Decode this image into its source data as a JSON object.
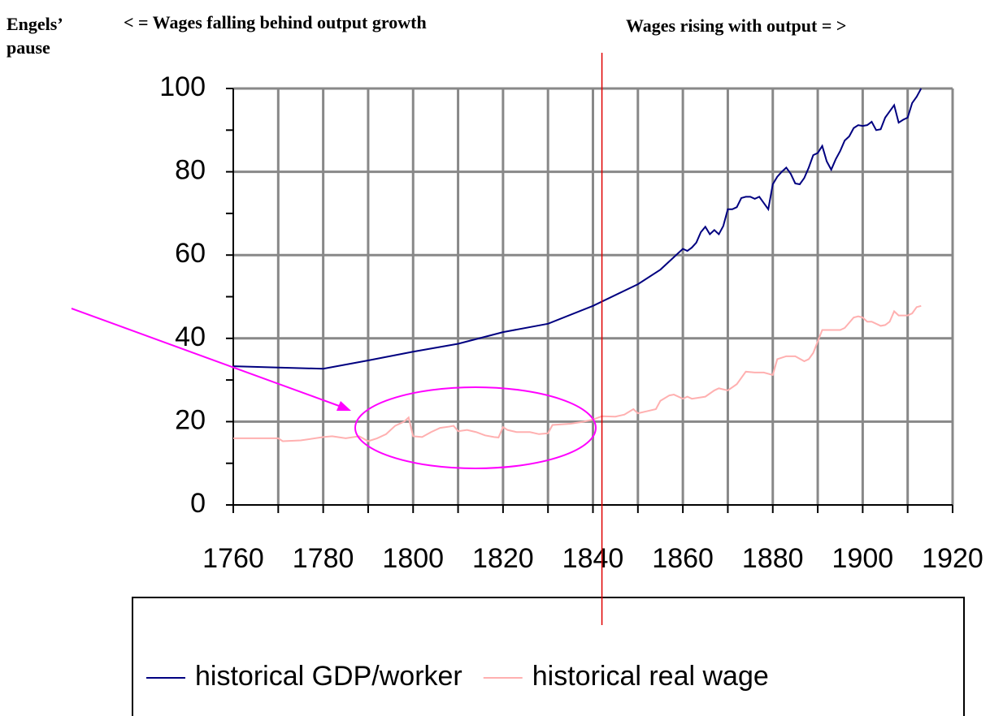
{
  "chart_data": {
    "type": "line",
    "annotations": [
      "Engels’",
      "pause",
      "< = Wages falling behind output growth",
      "Wages rising with output = >"
    ],
    "divider_x": 1842,
    "series": [
      {
        "name": "historical GDP/worker",
        "color": "#000080",
        "x": [
          1760,
          1770,
          1780,
          1790,
          1800,
          1810,
          1820,
          1830,
          1840,
          1850,
          1855,
          1860,
          1861,
          1862,
          1863,
          1864,
          1865,
          1866,
          1867,
          1868,
          1869,
          1870,
          1871,
          1872,
          1873,
          1874,
          1875,
          1876,
          1877,
          1878,
          1879,
          1880,
          1881,
          1882,
          1883,
          1884,
          1885,
          1886,
          1887,
          1888,
          1889,
          1890,
          1891,
          1892,
          1893,
          1894,
          1895,
          1896,
          1897,
          1898,
          1899,
          1900,
          1901,
          1902,
          1903,
          1904,
          1905,
          1906,
          1907,
          1908,
          1909,
          1910,
          1911,
          1912,
          1913
        ],
        "values": [
          33.3,
          33,
          32.7,
          34.7,
          36.8,
          38.7,
          41.5,
          43.5,
          47.8,
          53,
          56.5,
          61.5,
          61,
          61.8,
          63,
          65.5,
          66.8,
          65,
          66,
          65,
          67,
          71,
          71,
          71.5,
          73.7,
          74,
          74,
          73.5,
          74,
          72.5,
          71,
          77,
          78.8,
          80,
          81,
          79.5,
          77.2,
          77,
          78.5,
          81,
          84,
          84.5,
          86.2,
          82.5,
          80.5,
          83,
          85,
          87.5,
          88.5,
          90.5,
          91.2,
          91,
          91.2,
          92,
          90,
          90.2,
          93,
          94.5,
          96,
          91.8,
          92.5,
          93,
          96.5,
          98,
          100
        ]
      },
      {
        "name": "historical real wage",
        "color": "#ffb0b0",
        "x": [
          1760,
          1770,
          1771,
          1775,
          1780,
          1782,
          1785,
          1788,
          1790,
          1792,
          1794,
          1796,
          1798,
          1799,
          1800,
          1802,
          1804,
          1806,
          1808,
          1809,
          1810,
          1812,
          1814,
          1816,
          1818,
          1819,
          1820,
          1821,
          1823,
          1826,
          1828,
          1830,
          1831,
          1835,
          1838,
          1840,
          1842,
          1845,
          1847,
          1849,
          1850,
          1852,
          1854,
          1855,
          1857,
          1858,
          1860,
          1861,
          1862,
          1865,
          1867,
          1868,
          1870,
          1872,
          1874,
          1876,
          1878,
          1880,
          1881,
          1883,
          1885,
          1887,
          1888,
          1889,
          1891,
          1895,
          1896,
          1898,
          1899,
          1900,
          1901,
          1902,
          1904,
          1905,
          1906,
          1907,
          1908,
          1910,
          1911,
          1912,
          1913
        ],
        "values": [
          16,
          16,
          15.3,
          15.5,
          16.3,
          16.5,
          16,
          16.5,
          15.3,
          16,
          17,
          19,
          20,
          21,
          16.5,
          16.3,
          17.5,
          18.5,
          18.8,
          19,
          17.7,
          18,
          17.5,
          16.7,
          16.3,
          16.2,
          18.7,
          18,
          17.5,
          17.5,
          17,
          17.2,
          19.2,
          19.5,
          20,
          20.5,
          21.3,
          21.2,
          21.7,
          23,
          22,
          22.5,
          23,
          25,
          26.3,
          26.5,
          25.5,
          26,
          25.5,
          26,
          27.5,
          28,
          27.5,
          29,
          32,
          31.8,
          31.8,
          31.2,
          35,
          35.7,
          35.7,
          34.5,
          35,
          36.5,
          42,
          42,
          42.5,
          45,
          45.3,
          45,
          44,
          44,
          43,
          43.2,
          44,
          46.5,
          45.5,
          45.5,
          46,
          47.5,
          47.8
        ]
      }
    ],
    "xlim": [
      1760,
      1920
    ],
    "xticks": [
      1760,
      1780,
      1800,
      1820,
      1840,
      1860,
      1880,
      1900,
      1920
    ],
    "x_minor_ticks": [
      1770,
      1790,
      1810,
      1830,
      1850,
      1870,
      1890,
      1910
    ],
    "ylim": [
      0,
      100
    ],
    "yticks": [
      0,
      20,
      40,
      60,
      80,
      100
    ],
    "y_minor_ticks": [
      10,
      30,
      50,
      70,
      90
    ],
    "grid": true,
    "legend": "bottom"
  }
}
